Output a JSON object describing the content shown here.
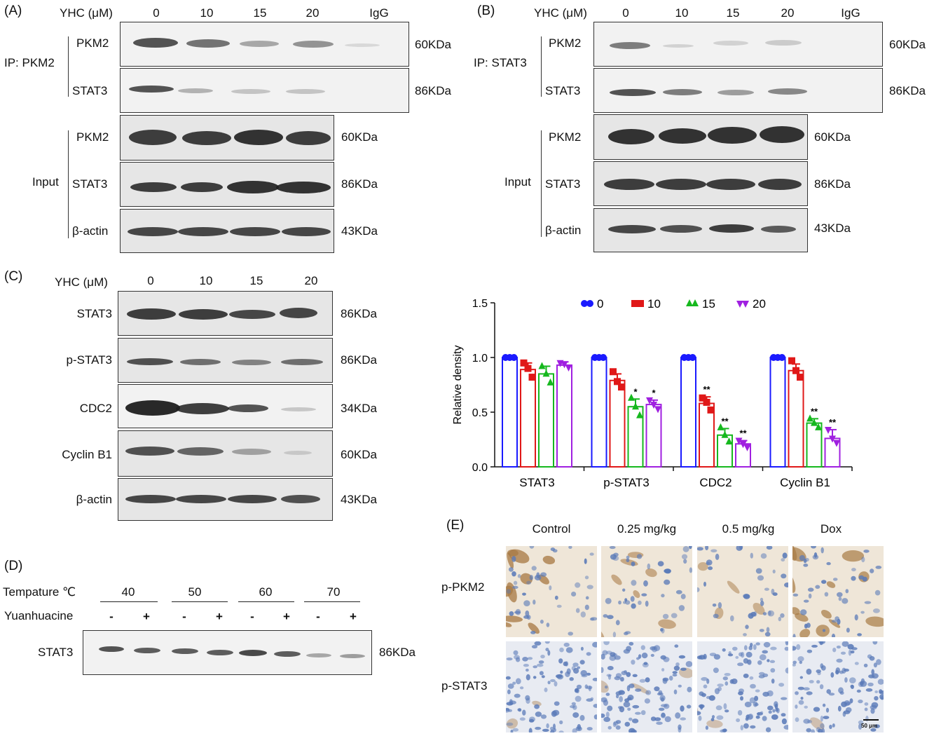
{
  "panelA": {
    "label": "(A)",
    "yhc": "YHC (μM)",
    "lanes": [
      "0",
      "10",
      "15",
      "20",
      "IgG"
    ],
    "ip": "IP: PKM2",
    "input": "Input",
    "rows": [
      {
        "name": "PKM2",
        "kda": "60KDa"
      },
      {
        "name": "STAT3",
        "kda": "86KDa"
      },
      {
        "name": "PKM2",
        "kda": "60KDa"
      },
      {
        "name": "STAT3",
        "kda": "86KDa"
      },
      {
        "name": "β-actin",
        "kda": "43KDa"
      }
    ]
  },
  "panelB": {
    "label": "(B)",
    "yhc": "YHC (μM)",
    "lanes": [
      "0",
      "10",
      "15",
      "20",
      "IgG"
    ],
    "ip": "IP: STAT3",
    "input": "Input",
    "rows": [
      {
        "name": "PKM2",
        "kda": "60KDa"
      },
      {
        "name": "STAT3",
        "kda": "86KDa"
      },
      {
        "name": "PKM2",
        "kda": "60KDa"
      },
      {
        "name": "STAT3",
        "kda": "86KDa"
      },
      {
        "name": "β-actin",
        "kda": "43KDa"
      }
    ]
  },
  "panelC": {
    "label": "(C)",
    "yhc": "YHC (μM)",
    "lanes": [
      "0",
      "10",
      "15",
      "20"
    ],
    "rows": [
      {
        "name": "STAT3",
        "kda": "86KDa"
      },
      {
        "name": "p-STAT3",
        "kda": "86KDa"
      },
      {
        "name": "CDC2",
        "kda": "34KDa"
      },
      {
        "name": "Cyclin B1",
        "kda": "60KDa"
      },
      {
        "name": "β-actin",
        "kda": "43KDa"
      }
    ]
  },
  "panelD": {
    "label": "(D)",
    "temp_label": "Tempature ℃",
    "temps": [
      "40",
      "50",
      "60",
      "70"
    ],
    "drug_label": "Yuanhuacine",
    "signs": [
      "-",
      "+",
      "-",
      "+",
      "-",
      "+",
      "-",
      "+"
    ],
    "row": {
      "name": "STAT3",
      "kda": "86KDa"
    }
  },
  "panelE": {
    "label": "(E)",
    "columns": [
      "Control",
      "0.25 mg/kg",
      "0.5 mg/kg",
      "Dox"
    ],
    "rows": [
      "p-PKM2",
      "p-STAT3"
    ],
    "scale_bar": "50 μm"
  },
  "colors": {
    "s0": "#1a1aff",
    "s10": "#e01818",
    "s15": "#16b81e",
    "s20": "#a020e0",
    "brown": "#a87a45",
    "blue_nuclei": "#5a7ab8"
  },
  "chart_data": {
    "type": "bar",
    "categories": [
      "STAT3",
      "p-STAT3",
      "CDC2",
      "Cyclin B1"
    ],
    "series": [
      {
        "name": "0",
        "values": [
          1.0,
          1.0,
          1.0,
          1.0
        ],
        "err": [
          0,
          0,
          0,
          0
        ],
        "points": [
          [
            1,
            1,
            1
          ],
          [
            1,
            1,
            1
          ],
          [
            1,
            1,
            1
          ],
          [
            1,
            1,
            1
          ]
        ],
        "sig": [
          "",
          "",
          "",
          ""
        ]
      },
      {
        "name": "10",
        "values": [
          0.89,
          0.79,
          0.58,
          0.88
        ],
        "err": [
          0.06,
          0.06,
          0.06,
          0.06
        ],
        "points": [
          [
            0.95,
            0.9,
            0.82
          ],
          [
            0.87,
            0.78,
            0.73
          ],
          [
            0.63,
            0.59,
            0.52
          ],
          [
            0.97,
            0.88,
            0.82
          ]
        ],
        "sig": [
          "",
          "",
          "**",
          ""
        ]
      },
      {
        "name": "15",
        "values": [
          0.85,
          0.55,
          0.29,
          0.4
        ],
        "err": [
          0.07,
          0.07,
          0.06,
          0.04
        ],
        "points": [
          [
            0.92,
            0.85,
            0.77
          ],
          [
            0.63,
            0.55,
            0.47
          ],
          [
            0.36,
            0.29,
            0.23
          ],
          [
            0.44,
            0.4,
            0.36
          ]
        ],
        "sig": [
          "",
          "*",
          "**",
          "**"
        ]
      },
      {
        "name": "20",
        "values": [
          0.93,
          0.57,
          0.21,
          0.26
        ],
        "err": [
          0.03,
          0.04,
          0.03,
          0.08
        ],
        "points": [
          [
            0.95,
            0.94,
            0.91
          ],
          [
            0.61,
            0.57,
            0.53
          ],
          [
            0.24,
            0.21,
            0.18
          ],
          [
            0.34,
            0.26,
            0.22
          ]
        ],
        "sig": [
          "",
          "*",
          "**",
          "**"
        ]
      }
    ],
    "ylabel": "Relative density",
    "xlabel": "",
    "ylim": [
      0,
      1.5
    ],
    "yticks": [
      "0.0",
      "0.5",
      "1.0",
      "1.5"
    ],
    "legend": "top"
  }
}
